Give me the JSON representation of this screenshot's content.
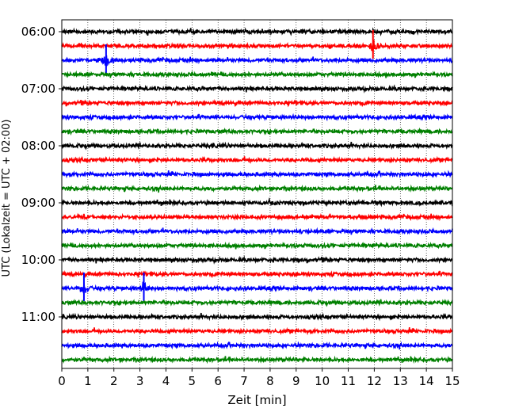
{
  "chart_data": {
    "type": "line",
    "chart_kind": "helicorder",
    "title": "",
    "xlabel": "Zeit  [min]",
    "ylabel": "UTC (Lokalzeit = UTC + 02:00)",
    "xlim": [
      0,
      15
    ],
    "x_ticks": [
      "0",
      "1",
      "2",
      "3",
      "4",
      "5",
      "6",
      "7",
      "8",
      "9",
      "10",
      "11",
      "12",
      "13",
      "14",
      "15"
    ],
    "y_tick_labels": [
      "06:00",
      "07:00",
      "08:00",
      "09:00",
      "10:00",
      "11:00"
    ],
    "x_grid": "dotted vertical lines at each minute",
    "traces_per_hour": 4,
    "trace_minutes": 15,
    "start_time": "06:00",
    "trace_colors": [
      "#000000",
      "#ff0000",
      "#0000ff",
      "#008000"
    ],
    "notable_events": [
      {
        "trace_start": "06:15",
        "minute": 11.95,
        "color": "#ff0000"
      },
      {
        "trace_start": "06:30",
        "minute": 1.7,
        "color": "#0000ff"
      },
      {
        "trace_start": "10:30",
        "minute": 0.85,
        "color": "#0000ff"
      },
      {
        "trace_start": "10:30",
        "minute": 3.15,
        "color": "#0000ff"
      }
    ],
    "trace_starts": [
      "06:00",
      "06:15",
      "06:30",
      "06:45",
      "07:00",
      "07:15",
      "07:30",
      "07:45",
      "08:00",
      "08:15",
      "08:30",
      "08:45",
      "09:00",
      "09:15",
      "09:30",
      "09:45",
      "10:00",
      "10:15",
      "10:30",
      "10:45",
      "11:00",
      "11:15",
      "11:30",
      "11:45"
    ]
  }
}
